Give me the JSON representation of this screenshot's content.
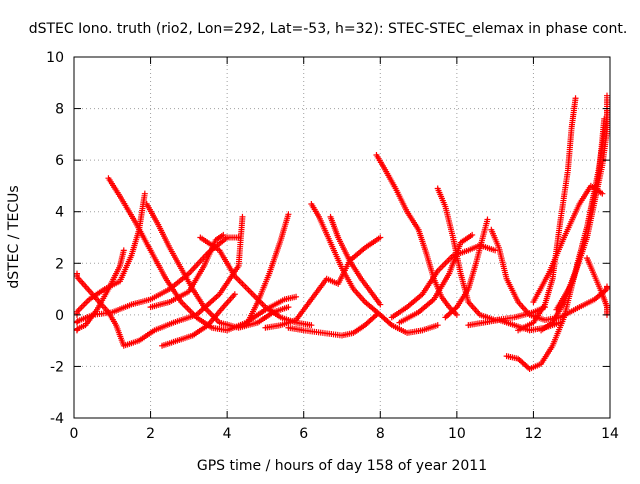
{
  "chart_data": {
    "type": "scatter",
    "title": "dSTEC Iono. truth (rio2, Lon=292, Lat=-53, h=32): STEC-STEC_elemax in phase cont.",
    "xlabel": "GPS time / hours of day 158 of year 2011",
    "ylabel": "dSTEC  / TECUs",
    "xlim": [
      0,
      14
    ],
    "ylim": [
      -4,
      10
    ],
    "xticks": [
      "0",
      "2",
      "4",
      "6",
      "8",
      "10",
      "12",
      "14"
    ],
    "yticks": [
      "-4",
      "-2",
      "0",
      "2",
      "4",
      "6",
      "8",
      "10"
    ],
    "grid": true,
    "marker": "+",
    "color": "#ff0000",
    "series": [
      {
        "points": [
          [
            0.0,
            1.6
          ],
          [
            0.3,
            1.1
          ],
          [
            0.6,
            0.6
          ],
          [
            0.9,
            0.1
          ],
          [
            1.1,
            -0.4
          ],
          [
            1.3,
            -1.2
          ],
          [
            1.7,
            -1.0
          ],
          [
            2.1,
            -0.6
          ],
          [
            2.6,
            -0.3
          ],
          [
            3.2,
            0.0
          ],
          [
            3.8,
            0.8
          ],
          [
            4.3,
            1.9
          ],
          [
            4.4,
            3.8
          ]
        ]
      },
      {
        "points": [
          [
            0.0,
            -0.6
          ],
          [
            0.3,
            -0.4
          ],
          [
            0.6,
            0.2
          ],
          [
            0.9,
            1.0
          ],
          [
            1.2,
            1.9
          ],
          [
            1.3,
            2.5
          ]
        ]
      },
      {
        "points": [
          [
            0.9,
            5.3
          ],
          [
            1.2,
            4.6
          ],
          [
            1.6,
            3.6
          ],
          [
            2.0,
            2.5
          ],
          [
            2.4,
            1.4
          ],
          [
            2.8,
            0.5
          ],
          [
            3.2,
            -0.1
          ],
          [
            3.6,
            -0.5
          ],
          [
            4.0,
            -0.6
          ],
          [
            4.5,
            -0.3
          ],
          [
            5.0,
            0.2
          ],
          [
            5.5,
            0.6
          ],
          [
            5.8,
            0.7
          ]
        ]
      },
      {
        "points": [
          [
            0.0,
            0.0
          ],
          [
            0.4,
            0.6
          ],
          [
            0.8,
            1.0
          ],
          [
            1.2,
            1.3
          ],
          [
            1.5,
            2.3
          ],
          [
            1.7,
            3.3
          ],
          [
            1.85,
            4.7
          ]
        ]
      },
      {
        "points": [
          [
            0.0,
            -0.3
          ],
          [
            0.5,
            0.0
          ],
          [
            1.0,
            0.1
          ],
          [
            1.5,
            0.4
          ],
          [
            2.0,
            0.6
          ],
          [
            2.5,
            1.0
          ],
          [
            3.0,
            1.6
          ],
          [
            3.5,
            2.4
          ],
          [
            4.0,
            3.0
          ],
          [
            4.3,
            3.0
          ]
        ]
      },
      {
        "points": [
          [
            1.9,
            4.3
          ],
          [
            2.2,
            3.5
          ],
          [
            2.5,
            2.6
          ],
          [
            2.8,
            1.8
          ],
          [
            3.1,
            1.0
          ],
          [
            3.4,
            0.3
          ],
          [
            3.8,
            -0.3
          ],
          [
            4.3,
            -0.5
          ],
          [
            4.8,
            -0.3
          ],
          [
            5.2,
            0.1
          ],
          [
            5.6,
            0.3
          ]
        ]
      },
      {
        "points": [
          [
            2.3,
            -1.2
          ],
          [
            2.7,
            -1.0
          ],
          [
            3.1,
            -0.8
          ],
          [
            3.5,
            -0.4
          ],
          [
            3.9,
            0.3
          ],
          [
            4.2,
            0.8
          ]
        ]
      },
      {
        "points": [
          [
            2.0,
            0.3
          ],
          [
            2.5,
            0.5
          ],
          [
            3.0,
            0.9
          ],
          [
            3.4,
            1.9
          ],
          [
            3.7,
            2.9
          ],
          [
            3.9,
            3.1
          ]
        ]
      },
      {
        "points": [
          [
            3.3,
            3.0
          ],
          [
            3.8,
            2.5
          ],
          [
            4.2,
            1.5
          ],
          [
            4.6,
            0.9
          ],
          [
            5.0,
            0.3
          ],
          [
            5.4,
            -0.1
          ],
          [
            5.8,
            -0.3
          ],
          [
            6.2,
            -0.4
          ]
        ]
      },
      {
        "points": [
          [
            4.5,
            -0.4
          ],
          [
            4.8,
            0.5
          ],
          [
            5.1,
            1.6
          ],
          [
            5.4,
            2.9
          ],
          [
            5.6,
            3.9
          ]
        ]
      },
      {
        "points": [
          [
            6.2,
            4.3
          ],
          [
            6.4,
            3.8
          ],
          [
            6.7,
            2.8
          ],
          [
            7.0,
            1.8
          ],
          [
            7.3,
            1.0
          ],
          [
            7.6,
            0.5
          ],
          [
            8.0,
            0.0
          ],
          [
            8.3,
            -0.4
          ],
          [
            8.7,
            -0.7
          ],
          [
            9.1,
            -0.6
          ],
          [
            9.5,
            -0.4
          ]
        ]
      },
      {
        "points": [
          [
            6.7,
            3.8
          ],
          [
            6.9,
            3.0
          ],
          [
            7.2,
            2.1
          ],
          [
            7.5,
            1.4
          ],
          [
            7.8,
            0.8
          ],
          [
            8.0,
            0.4
          ]
        ]
      },
      {
        "points": [
          [
            5.0,
            -0.5
          ],
          [
            5.4,
            -0.4
          ],
          [
            5.8,
            -0.2
          ],
          [
            6.0,
            0.2
          ],
          [
            6.3,
            0.8
          ],
          [
            6.6,
            1.4
          ],
          [
            6.9,
            1.2
          ],
          [
            7.2,
            2.1
          ],
          [
            7.6,
            2.6
          ],
          [
            8.0,
            3.0
          ]
        ]
      },
      {
        "points": [
          [
            5.6,
            -0.5
          ],
          [
            6.0,
            -0.6
          ],
          [
            6.5,
            -0.7
          ],
          [
            7.0,
            -0.8
          ],
          [
            7.3,
            -0.7
          ],
          [
            7.6,
            -0.4
          ],
          [
            7.9,
            0.0
          ]
        ]
      },
      {
        "points": [
          [
            7.9,
            6.2
          ],
          [
            8.1,
            5.7
          ],
          [
            8.4,
            4.9
          ],
          [
            8.7,
            4.0
          ],
          [
            9.0,
            3.3
          ],
          [
            9.2,
            2.4
          ],
          [
            9.4,
            1.4
          ],
          [
            9.6,
            0.7
          ],
          [
            9.8,
            0.3
          ],
          [
            10.0,
            0.0
          ]
        ]
      },
      {
        "points": [
          [
            8.3,
            -0.1
          ],
          [
            8.7,
            0.3
          ],
          [
            9.1,
            0.8
          ],
          [
            9.5,
            1.7
          ],
          [
            9.9,
            2.3
          ],
          [
            10.3,
            2.5
          ],
          [
            10.6,
            2.7
          ],
          [
            11.0,
            2.5
          ]
        ]
      },
      {
        "points": [
          [
            9.5,
            4.9
          ],
          [
            9.7,
            4.2
          ],
          [
            9.9,
            3.0
          ],
          [
            10.1,
            1.6
          ],
          [
            10.3,
            0.5
          ],
          [
            10.6,
            0.0
          ],
          [
            11.0,
            -0.2
          ],
          [
            11.5,
            -0.1
          ],
          [
            12.0,
            0.1
          ],
          [
            12.3,
            0.3
          ]
        ]
      },
      {
        "points": [
          [
            8.5,
            -0.3
          ],
          [
            9.0,
            0.1
          ],
          [
            9.4,
            0.6
          ],
          [
            9.8,
            1.6
          ],
          [
            10.1,
            2.8
          ],
          [
            10.4,
            3.1
          ]
        ]
      },
      {
        "points": [
          [
            9.7,
            -0.1
          ],
          [
            10.0,
            0.3
          ],
          [
            10.3,
            1.0
          ],
          [
            10.5,
            2.0
          ],
          [
            10.8,
            3.7
          ]
        ]
      },
      {
        "points": [
          [
            10.9,
            3.3
          ],
          [
            11.1,
            2.6
          ],
          [
            11.3,
            1.4
          ],
          [
            11.6,
            0.5
          ],
          [
            11.9,
            0.0
          ],
          [
            12.3,
            -0.2
          ],
          [
            12.7,
            -0.1
          ],
          [
            13.2,
            0.3
          ],
          [
            13.6,
            0.6
          ],
          [
            14.0,
            1.1
          ]
        ]
      },
      {
        "points": [
          [
            11.3,
            -1.6
          ],
          [
            11.6,
            -1.7
          ],
          [
            11.9,
            -2.1
          ],
          [
            12.2,
            -1.9
          ],
          [
            12.5,
            -1.2
          ],
          [
            12.8,
            -0.1
          ],
          [
            13.1,
            1.7
          ],
          [
            13.4,
            3.4
          ],
          [
            13.7,
            5.6
          ],
          [
            13.9,
            7.5
          ],
          [
            14.0,
            8.5
          ]
        ]
      },
      {
        "points": [
          [
            11.6,
            -0.6
          ],
          [
            12.0,
            -0.3
          ],
          [
            12.3,
            0.4
          ],
          [
            12.5,
            1.4
          ],
          [
            12.7,
            3.6
          ],
          [
            12.9,
            5.6
          ],
          [
            13.0,
            7.3
          ],
          [
            13.1,
            8.4
          ]
        ]
      },
      {
        "points": [
          [
            12.0,
            0.5
          ],
          [
            12.4,
            1.6
          ],
          [
            12.8,
            3.0
          ],
          [
            13.2,
            4.3
          ],
          [
            13.5,
            5.0
          ],
          [
            13.8,
            4.7
          ]
        ]
      },
      {
        "points": [
          [
            12.2,
            -0.6
          ],
          [
            12.5,
            -0.3
          ],
          [
            12.8,
            0.5
          ],
          [
            13.1,
            1.7
          ],
          [
            13.4,
            3.4
          ],
          [
            13.7,
            5.3
          ],
          [
            13.85,
            7.6
          ]
        ]
      },
      {
        "points": [
          [
            12.6,
            0.2
          ],
          [
            13.0,
            1.2
          ],
          [
            13.4,
            3.0
          ],
          [
            13.8,
            5.8
          ],
          [
            14.0,
            8.0
          ]
        ]
      },
      {
        "points": [
          [
            13.4,
            2.2
          ],
          [
            13.6,
            1.5
          ],
          [
            13.8,
            0.8
          ],
          [
            14.0,
            0.0
          ]
        ]
      },
      {
        "points": [
          [
            10.3,
            -0.4
          ],
          [
            10.7,
            -0.3
          ],
          [
            11.1,
            -0.2
          ],
          [
            11.5,
            -0.4
          ],
          [
            11.9,
            -0.6
          ],
          [
            12.3,
            -0.5
          ],
          [
            12.7,
            -0.3
          ]
        ]
      }
    ]
  }
}
